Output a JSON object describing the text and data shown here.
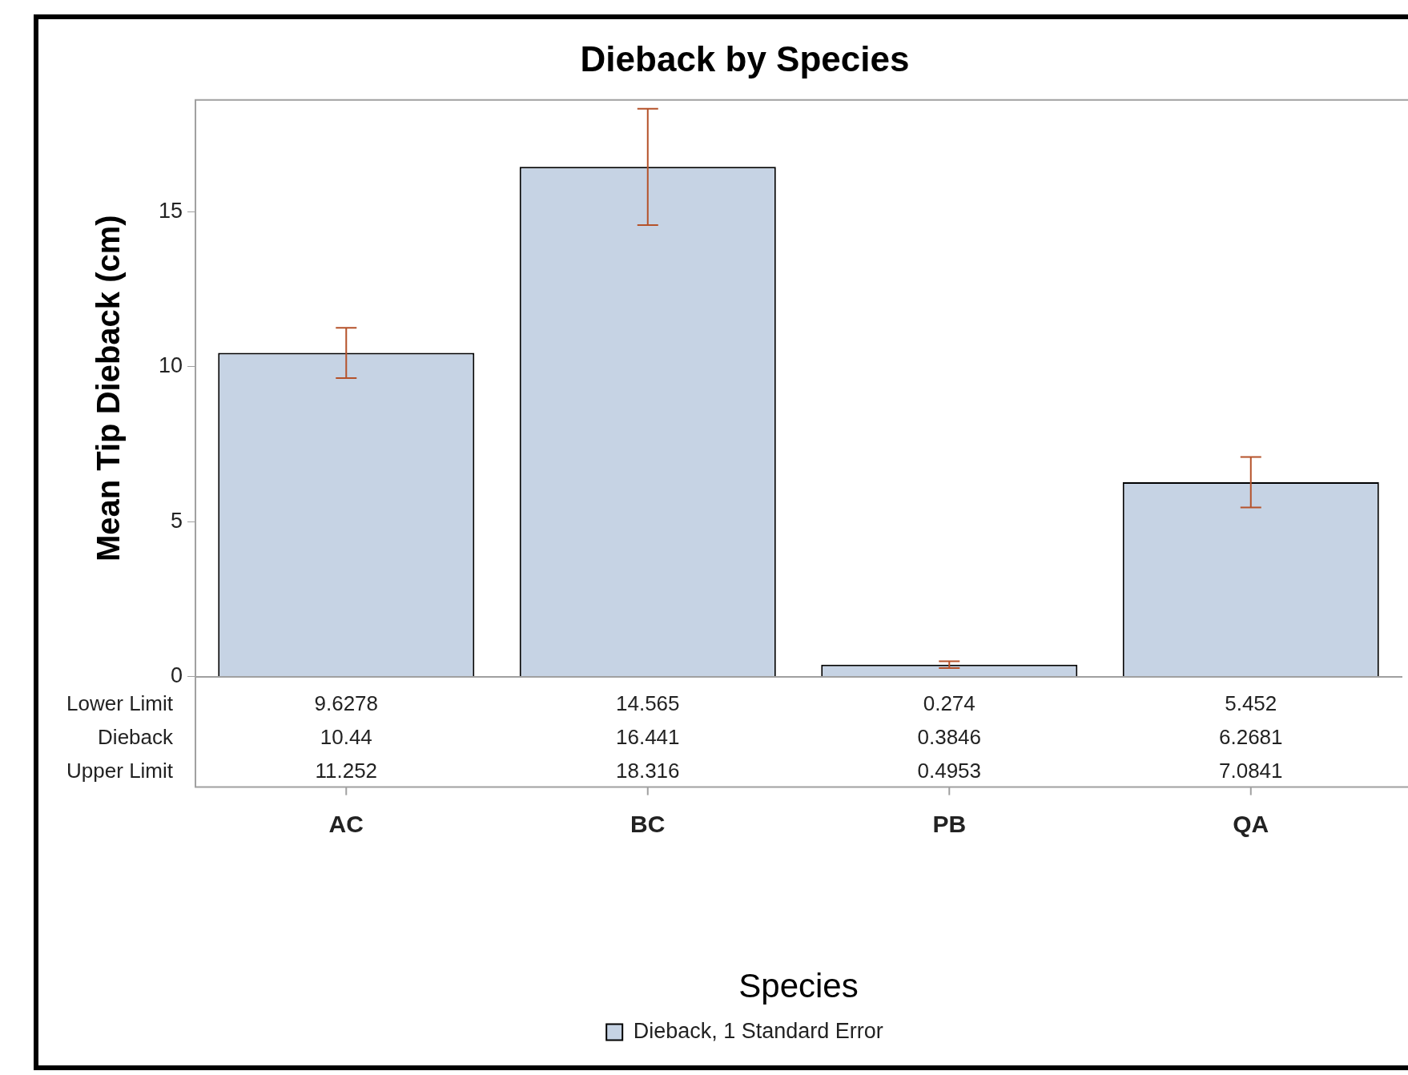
{
  "chart_data": {
    "type": "bar",
    "title": "Dieback by Species",
    "xlabel": "Species",
    "ylabel": "Mean Tip Dieback (cm)",
    "categories": [
      "AC",
      "BC",
      "PB",
      "QA"
    ],
    "series": [
      {
        "name": "Dieback, 1 Standard Error",
        "color": "#c6d3e4",
        "values": [
          10.44,
          16.441,
          0.3846,
          6.2681
        ],
        "errors": [
          [
            9.6278,
            11.252
          ],
          [
            14.565,
            18.316
          ],
          [
            0.274,
            0.4953
          ],
          [
            5.452,
            7.0841
          ]
        ]
      }
    ],
    "ylim": [
      0,
      18.6
    ],
    "yticks": [
      0,
      5,
      10,
      15
    ],
    "grid": false,
    "legend": "bottom",
    "data_labels": true,
    "annotations": [
      "Lower Limit",
      "Dieback",
      "Upper Limit",
      "9.6278",
      "14.565",
      "0.274",
      "5.452",
      "11.252",
      "18.316",
      "0.4953",
      "7.0841"
    ]
  }
}
